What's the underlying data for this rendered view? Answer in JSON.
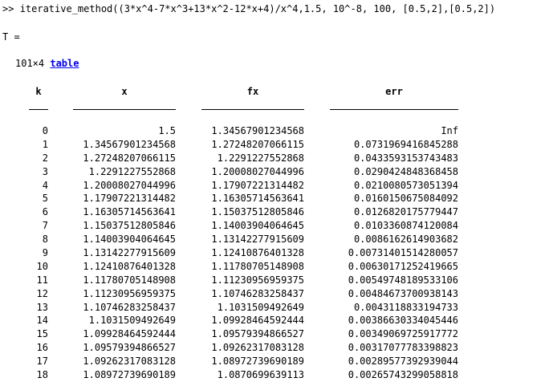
{
  "console": {
    "prompt": ">> ",
    "command": "iterative_method((3*x^4-7*x^3+13*x^2-12*x+4)/x^4,1.5, 10^-8, 100, [0.5,2],[0.5,2])",
    "variable_line": "T =",
    "size_text": "101×4 ",
    "table_link": "table"
  },
  "table": {
    "headers": [
      "k",
      "x",
      "fx",
      "err"
    ],
    "rows": [
      [
        "0",
        "1.5",
        "1.34567901234568",
        "Inf"
      ],
      [
        "1",
        "1.34567901234568",
        "1.27248207066115",
        "0.0731969416845288"
      ],
      [
        "2",
        "1.27248207066115",
        "1.2291227552868",
        "0.0433593153743483"
      ],
      [
        "3",
        "1.2291227552868",
        "1.20008027044996",
        "0.0290424848368458"
      ],
      [
        "4",
        "1.20008027044996",
        "1.17907221314482",
        "0.0210080573051394"
      ],
      [
        "5",
        "1.17907221314482",
        "1.16305714563641",
        "0.0160150675084092"
      ],
      [
        "6",
        "1.16305714563641",
        "1.15037512805846",
        "0.0126820175779447"
      ],
      [
        "7",
        "1.15037512805846",
        "1.14003904064645",
        "0.0103360874120084"
      ],
      [
        "8",
        "1.14003904064645",
        "1.13142277915609",
        "0.0086162614903682"
      ],
      [
        "9",
        "1.13142277915609",
        "1.12410876401328",
        "0.00731401514280057"
      ],
      [
        "10",
        "1.12410876401328",
        "1.11780705148908",
        "0.00630171252419665"
      ],
      [
        "11",
        "1.11780705148908",
        "1.11230956959375",
        "0.00549748189533106"
      ],
      [
        "12",
        "1.11230956959375",
        "1.10746283258437",
        "0.00484673700938143"
      ],
      [
        "13",
        "1.10746283258437",
        "1.1031509492649",
        "0.0043118833194733"
      ],
      [
        "14",
        "1.1031509492649",
        "1.09928464592444",
        "0.00386630334045446"
      ],
      [
        "15",
        "1.09928464592444",
        "1.09579394866527",
        "0.00349069725917772"
      ],
      [
        "16",
        "1.09579394866527",
        "1.09262317083128",
        "0.00317077783398823"
      ],
      [
        "17",
        "1.09262317083128",
        "1.08972739690189",
        "0.00289577392939044"
      ],
      [
        "18",
        "1.08972739690189",
        "1.0870699639113",
        "0.00265743299058818"
      ]
    ]
  }
}
